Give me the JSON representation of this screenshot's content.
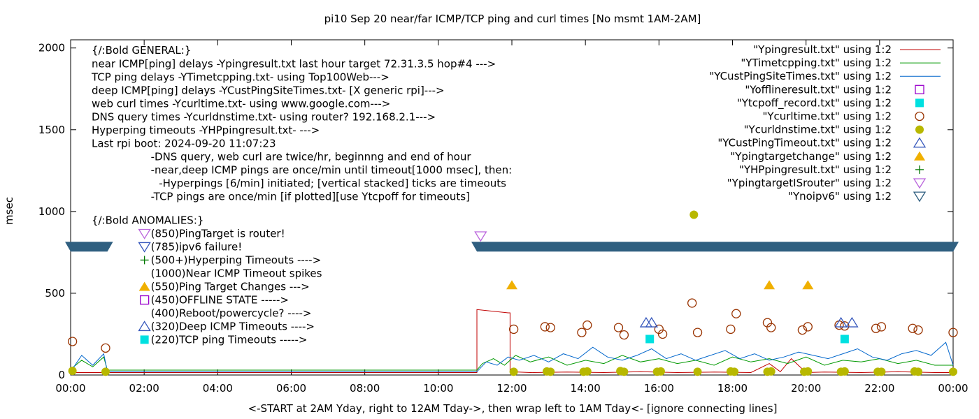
{
  "chart_data": {
    "type": "line",
    "title": "pi10 Sep 20  near/far ICMP/TCP ping and curl times [No msmt 1AM-2AM]",
    "xlabel": "<-START at 2AM Yday, right to 12AM Tday->, then wrap left to 1AM Tday<- [ignore connecting lines]",
    "ylabel": "msec",
    "xlim": [
      0,
      24
    ],
    "ylim": [
      0,
      2050
    ],
    "x_ticks": [
      {
        "v": 0,
        "label": "00:00"
      },
      {
        "v": 2,
        "label": "02:00"
      },
      {
        "v": 4,
        "label": "04:00"
      },
      {
        "v": 6,
        "label": "06:00"
      },
      {
        "v": 8,
        "label": "08:00"
      },
      {
        "v": 10,
        "label": "10:00"
      },
      {
        "v": 12,
        "label": "12:00"
      },
      {
        "v": 14,
        "label": "14:00"
      },
      {
        "v": 16,
        "label": "16:00"
      },
      {
        "v": 18,
        "label": "18:00"
      },
      {
        "v": 20,
        "label": "20:00"
      },
      {
        "v": 22,
        "label": "22:00"
      },
      {
        "v": 24,
        "label": "00:00"
      }
    ],
    "y_ticks": [
      {
        "v": 0,
        "label": "0"
      },
      {
        "v": 500,
        "label": "500"
      },
      {
        "v": 1000,
        "label": "1000"
      },
      {
        "v": 1500,
        "label": "1500"
      },
      {
        "v": 2000,
        "label": "2000"
      }
    ],
    "grid": false,
    "legend": "top-right",
    "series": [
      {
        "name": "\"Ypingresult.txt\" using 1:2",
        "kind": "line",
        "color": "#c00000",
        "x": [
          0,
          0.5,
          1.0,
          11.05,
          11.05,
          11.9,
          11.95,
          11.95,
          12.5,
          13.5,
          14.5,
          15.5,
          16.5,
          17.5,
          18.5,
          19.0,
          19.3,
          19.6,
          20.0,
          20.5,
          21.5,
          22.5,
          23.5,
          24.0
        ],
        "y": [
          15,
          15,
          15,
          15,
          400,
          380,
          380,
          20,
          15,
          18,
          15,
          20,
          15,
          18,
          15,
          70,
          20,
          100,
          15,
          18,
          15,
          20,
          15,
          15
        ]
      },
      {
        "name": "\"YTimetcpping.txt\" using 1:2",
        "kind": "line",
        "color": "#009900",
        "x": [
          0,
          0.3,
          0.6,
          0.9,
          1.0,
          11.05,
          11.2,
          11.5,
          11.8,
          12.1,
          12.5,
          13.0,
          13.5,
          14.0,
          14.5,
          15.0,
          15.5,
          16.0,
          16.5,
          17.0,
          17.5,
          18.0,
          18.5,
          19.0,
          19.5,
          20.0,
          20.5,
          21.0,
          21.5,
          22.0,
          22.5,
          23.0,
          23.5,
          24.0
        ],
        "y": [
          35,
          90,
          50,
          110,
          30,
          30,
          70,
          100,
          60,
          120,
          80,
          110,
          60,
          90,
          70,
          120,
          80,
          100,
          70,
          90,
          60,
          110,
          80,
          100,
          70,
          110,
          60,
          90,
          80,
          100,
          70,
          90,
          60,
          60
        ]
      },
      {
        "name": "\"YCustPingSiteTimes.txt\" using 1:2",
        "kind": "line",
        "color": "#0066cc",
        "x": [
          0,
          0.3,
          0.6,
          0.9,
          1.0,
          11.05,
          11.3,
          11.6,
          11.9,
          12.2,
          12.6,
          13.0,
          13.4,
          13.8,
          14.2,
          14.6,
          15.0,
          15.4,
          15.8,
          16.2,
          16.6,
          17.0,
          17.4,
          17.8,
          18.2,
          18.6,
          19.0,
          19.4,
          19.8,
          20.2,
          20.6,
          21.0,
          21.4,
          21.8,
          22.2,
          22.6,
          23.0,
          23.4,
          23.8,
          24.0
        ],
        "y": [
          20,
          120,
          60,
          130,
          20,
          20,
          80,
          60,
          110,
          90,
          120,
          80,
          130,
          100,
          170,
          110,
          90,
          120,
          160,
          100,
          130,
          90,
          120,
          150,
          100,
          130,
          90,
          110,
          140,
          120,
          100,
          130,
          160,
          110,
          90,
          130,
          150,
          120,
          200,
          60
        ]
      },
      {
        "name": "\"Yofflineresult.txt\" using 1:2",
        "kind": "points",
        "marker": "square-open",
        "color": "#9900cc",
        "x": [],
        "y": []
      },
      {
        "name": "\"Ytcpoff_record.txt\" using 1:2",
        "kind": "points",
        "marker": "square-filled",
        "color": "#00e0e0",
        "x": [
          15.75,
          21.05
        ],
        "y": [
          220,
          220
        ]
      },
      {
        "name": "\"Ycurltime.txt\" using 1:2",
        "kind": "points",
        "marker": "circle-open",
        "color": "#993300",
        "x": [
          0.05,
          0.95,
          12.05,
          12.9,
          13.05,
          13.9,
          14.05,
          14.9,
          15.05,
          16.0,
          16.1,
          16.9,
          17.05,
          17.95,
          18.1,
          18.95,
          19.05,
          19.9,
          20.05,
          20.9,
          21.05,
          21.9,
          22.05,
          22.9,
          23.05,
          24.0
        ],
        "y": [
          205,
          165,
          280,
          295,
          290,
          260,
          305,
          290,
          245,
          280,
          250,
          440,
          260,
          280,
          375,
          320,
          290,
          275,
          295,
          305,
          300,
          285,
          295,
          285,
          275,
          260
        ]
      },
      {
        "name": "\"Ycurldnstime.txt\" using 1:2",
        "kind": "points",
        "marker": "circle-filled",
        "color": "#b8b800",
        "x": [
          0.05,
          0.95,
          12.05,
          12.95,
          13.05,
          13.95,
          14.05,
          14.95,
          15.05,
          15.95,
          16.05,
          16.95,
          17.05,
          17.95,
          18.05,
          18.95,
          19.05,
          19.95,
          20.05,
          20.95,
          21.05,
          21.95,
          22.05,
          22.95,
          23.05,
          24.0
        ],
        "y": [
          25,
          20,
          20,
          22,
          20,
          20,
          22,
          24,
          20,
          20,
          22,
          980,
          20,
          22,
          20,
          20,
          22,
          20,
          22,
          20,
          22,
          20,
          20,
          22,
          20,
          20
        ]
      },
      {
        "name": "\"YCustPingTimeout.txt\" using 1:2",
        "kind": "points",
        "marker": "triangle-up-open",
        "color": "#3355bb",
        "x": [
          15.65,
          15.8,
          20.95,
          21.25
        ],
        "y": [
          320,
          320,
          320,
          320
        ]
      },
      {
        "name": "\"Ypingtargetchange\" using 1:2",
        "kind": "points",
        "marker": "triangle-up-filled",
        "color": "#f0b000",
        "x": [
          12.0,
          19.0,
          20.05
        ],
        "y": [
          550,
          550,
          550
        ]
      },
      {
        "name": "\"YHPpingresult.txt\" using 1:2",
        "kind": "points",
        "marker": "plus",
        "color": "#007700",
        "x": [],
        "y": []
      },
      {
        "name": "\"YpingtargetISrouter\" using 1:2",
        "kind": "points",
        "marker": "triangle-down-open",
        "color": "#bb66dd",
        "x": [
          11.15
        ],
        "y": [
          850
        ]
      },
      {
        "name": "\"Ynoipv6\" using 1:2",
        "kind": "band",
        "marker": "triangle-down-open",
        "color": "#2f5f80",
        "segments": [
          [
            0,
            1.0
          ],
          [
            11.05,
            24.0
          ]
        ],
        "value": 785
      }
    ],
    "annotations": [
      {
        "text": "{/:Bold GENERAL:}",
        "x": 0.57,
        "y": 1985
      },
      {
        "text": "near ICMP[ping] delays -Ypingresult.txt last hour target 72.31.3.5 hop#4 --->",
        "x": 0.57,
        "y": 1903
      },
      {
        "text": "TCP ping delays -YTimetcpping.txt- using Top100Web--->",
        "x": 0.57,
        "y": 1822
      },
      {
        "text": "deep ICMP[ping] delays -YCustPingSiteTimes.txt- [X generic rpi]--->",
        "x": 0.57,
        "y": 1741
      },
      {
        "text": "web curl times -Ycurltime.txt- using www.google.com--->",
        "x": 0.57,
        "y": 1660
      },
      {
        "text": "DNS query times -Ycurldnstime.txt- using router? 192.168.2.1--->",
        "x": 0.57,
        "y": 1579
      },
      {
        "text": "Hyperping timeouts -YHPpingresult.txt- --->",
        "x": 0.57,
        "y": 1497
      },
      {
        "text": "Last rpi boot: 2024-09-20 11:07:23",
        "x": 0.57,
        "y": 1416
      },
      {
        "text": "-DNS query, web curl are twice/hr, beginnng and end of hour",
        "x": 2.18,
        "y": 1335
      },
      {
        "text": "-near,deep ICMP pings are once/min until timeout[1000 msec], then:",
        "x": 2.18,
        "y": 1254
      },
      {
        "text": "-Hyperpings [6/min] initiated; [vertical stacked] ticks are timeouts",
        "x": 2.4,
        "y": 1172
      },
      {
        "text": "-TCP pings are once/min [if plotted][use Ytcpoff for timeouts]",
        "x": 2.18,
        "y": 1091
      },
      {
        "text": "{/:Bold ANOMALIES:}",
        "x": 0.57,
        "y": 946
      },
      {
        "text": "(850)PingTarget is router!",
        "x": 2.18,
        "y": 865,
        "marker": "triangle-down-open",
        "color": "#bb66dd"
      },
      {
        "text": "(785)ipv6 failure!",
        "x": 2.18,
        "y": 784,
        "marker": "triangle-down-open",
        "color": "#3355bb"
      },
      {
        "text": "(500+)Hyperping Timeouts ---->",
        "x": 2.18,
        "y": 703,
        "marker": "plus",
        "color": "#007700"
      },
      {
        "text": "(1000)Near ICMP Timeout spikes",
        "x": 2.18,
        "y": 622
      },
      {
        "text": "(550)Ping Target Changes --->",
        "x": 2.18,
        "y": 540,
        "marker": "triangle-up-filled",
        "color": "#f0b000"
      },
      {
        "text": "(450)OFFLINE STATE ----->",
        "x": 2.18,
        "y": 459,
        "marker": "square-open",
        "color": "#9900cc"
      },
      {
        "text": "(400)Reboot/powercycle? ---->",
        "x": 2.18,
        "y": 378
      },
      {
        "text": "(320)Deep ICMP Timeouts ---->",
        "x": 2.18,
        "y": 297,
        "marker": "triangle-up-open",
        "color": "#3355bb"
      },
      {
        "text": "(220)TCP ping Timeouts ----->",
        "x": 2.18,
        "y": 216,
        "marker": "square-filled",
        "color": "#00e0e0"
      }
    ]
  }
}
